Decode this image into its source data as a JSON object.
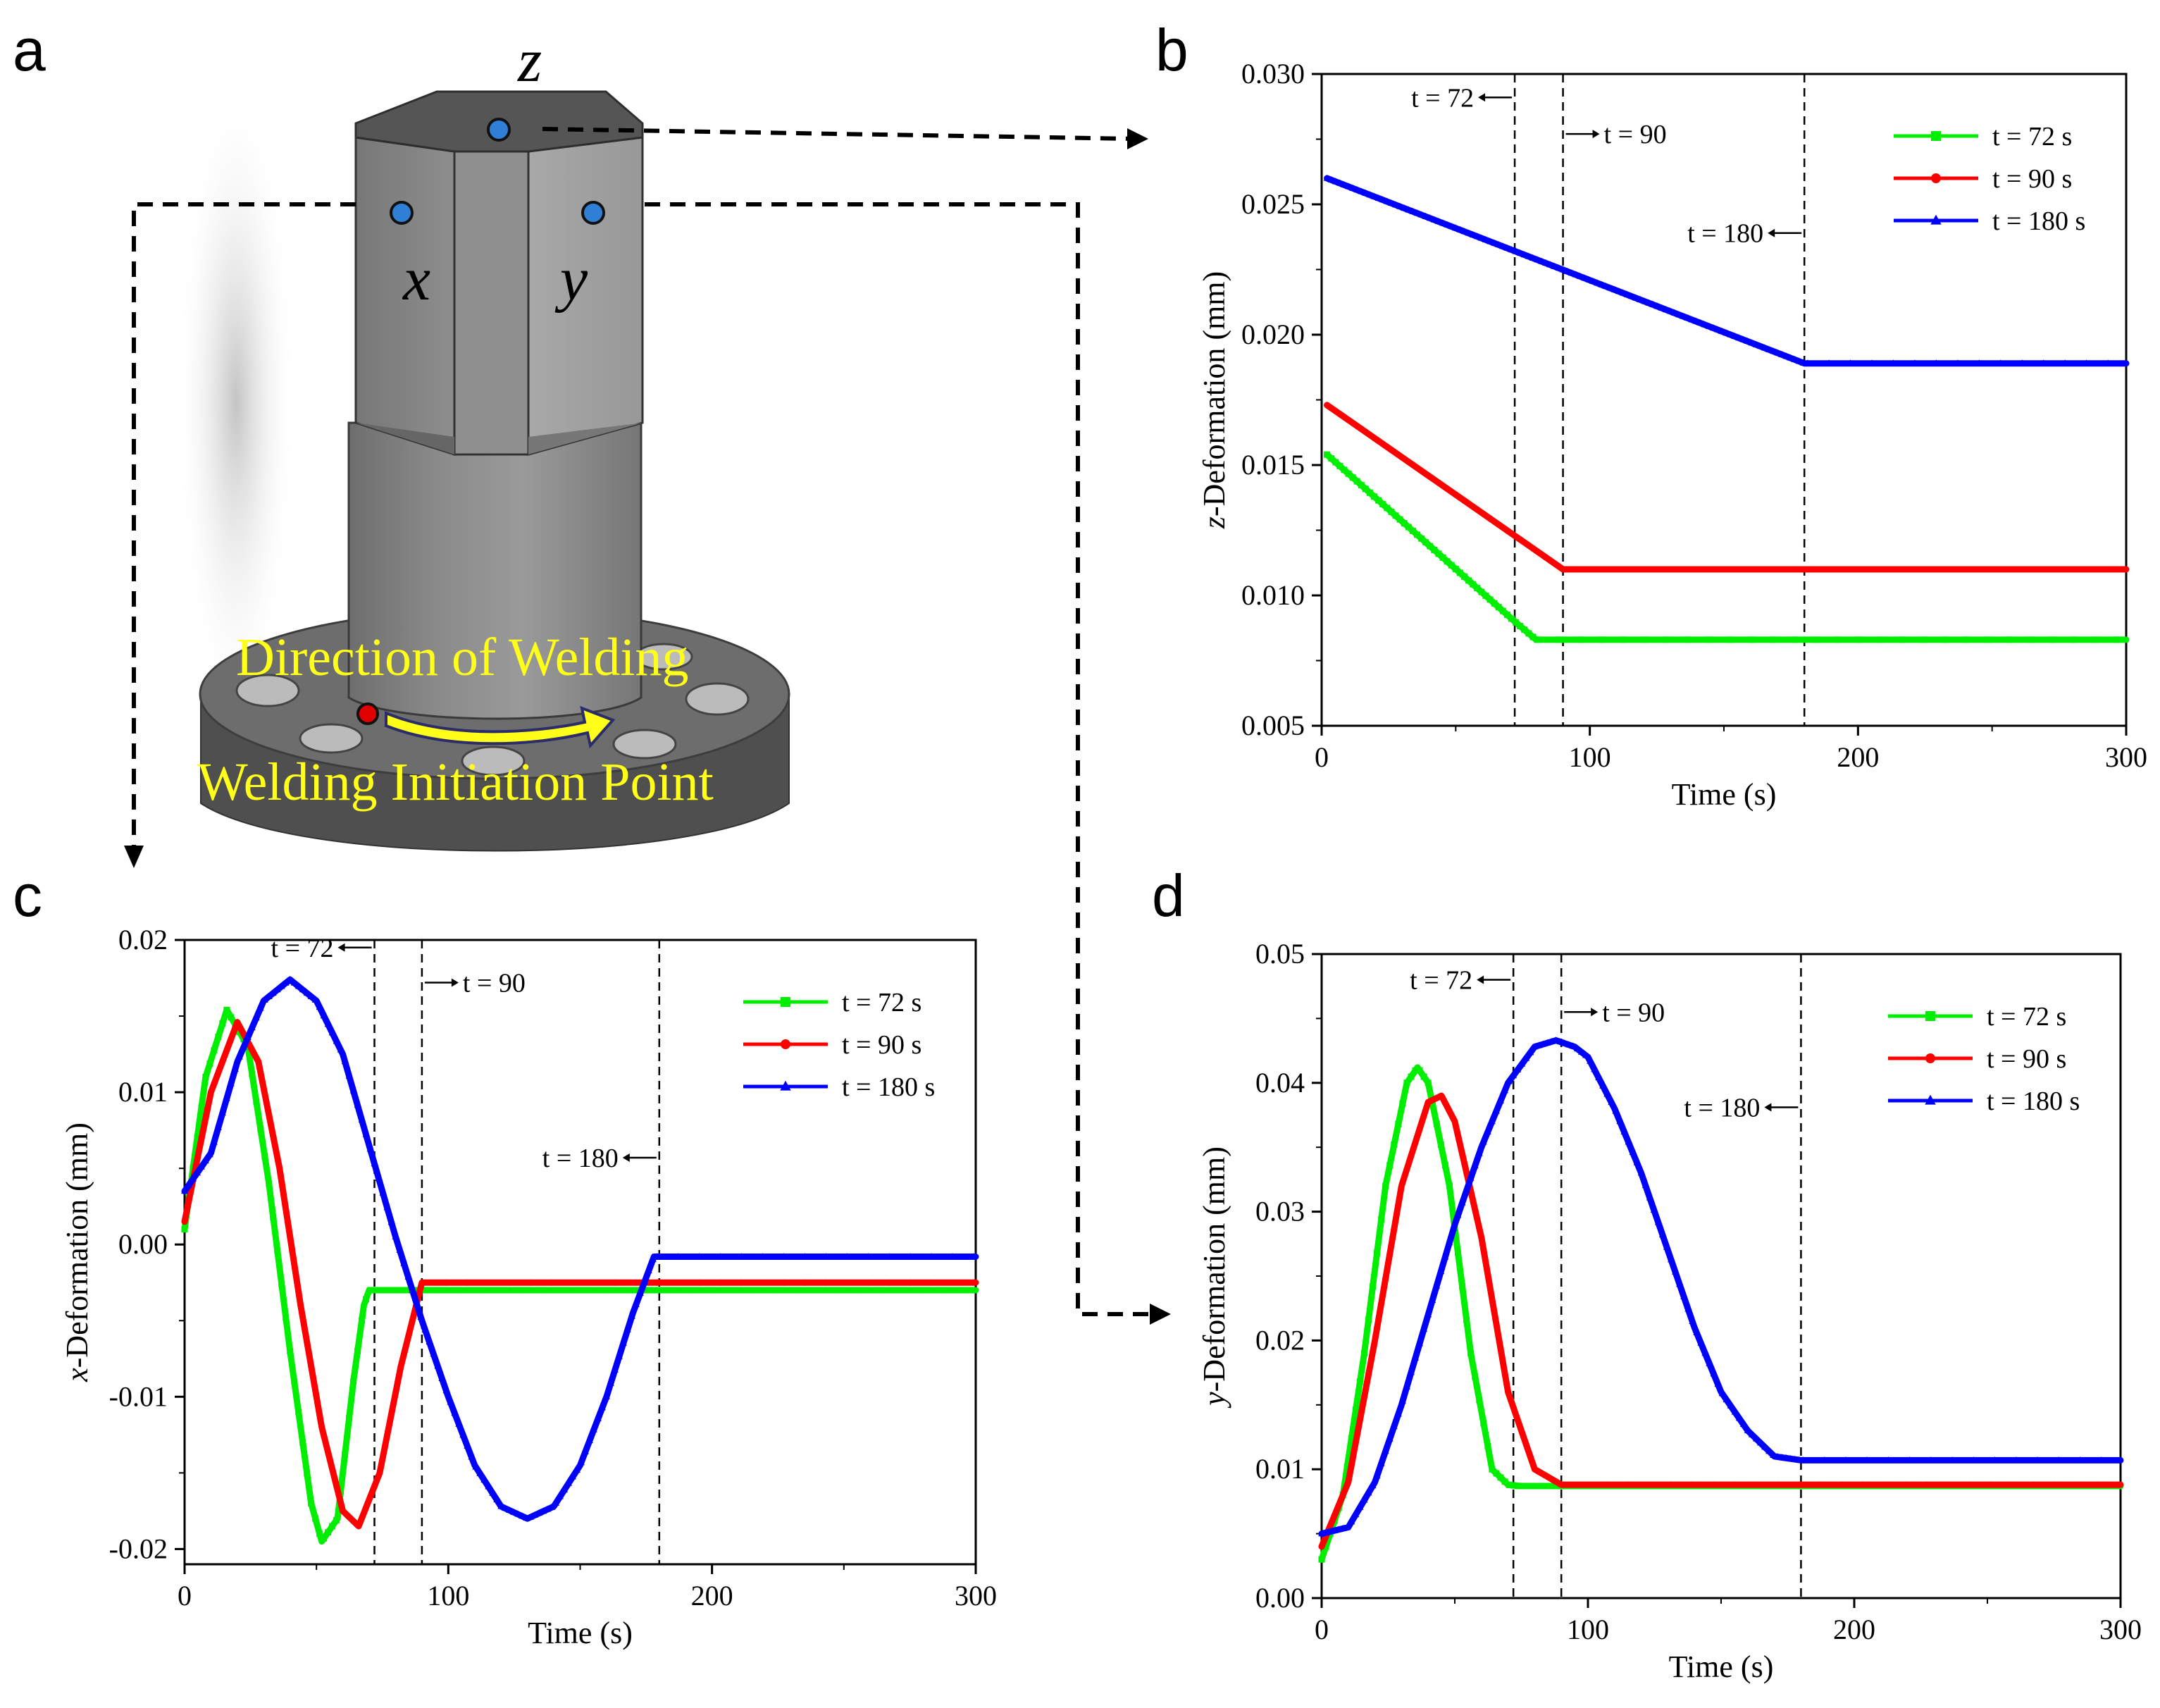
{
  "panels": {
    "a": {
      "letter": "a",
      "axis_letters": {
        "x": "x",
        "y": "y",
        "z": "z"
      },
      "direction_label": "Direction of Welding",
      "initiation_label": "Welding Initiation Point"
    },
    "b": {
      "letter": "b"
    },
    "c": {
      "letter": "c"
    },
    "d": {
      "letter": "d"
    }
  },
  "colors": {
    "t72": "#00ee00",
    "t90": "#ff0000",
    "t180": "#0000ff"
  },
  "chart_data": [
    {
      "id": "b",
      "type": "line",
      "xlabel": "Time (s)",
      "ylabel_var": "z",
      "ylabel_rest": "-Deformation (mm)",
      "xlim": [
        0,
        300
      ],
      "ylim": [
        0.005,
        0.03
      ],
      "xticks": [
        0,
        100,
        200,
        300
      ],
      "xtick_labels": [
        "0",
        "100",
        "200",
        "300"
      ],
      "yticks": [
        0.005,
        0.01,
        0.015,
        0.02,
        0.025,
        0.03
      ],
      "ytick_labels": [
        "0.005",
        "0.010",
        "0.015",
        "0.020",
        "0.025",
        "0.030"
      ],
      "vlines": [
        72,
        90,
        180
      ],
      "annotations": [
        {
          "text": "t = 72",
          "x": 72,
          "y": 0.0291,
          "dir": "left"
        },
        {
          "text": "t = 90",
          "x": 90,
          "y": 0.0277,
          "dir": "right"
        },
        {
          "text": "t = 180",
          "x": 180,
          "y": 0.0239,
          "dir": "left"
        }
      ],
      "legend_position": "top-right",
      "series": [
        {
          "name": "t = 72 s",
          "marker": "square",
          "color": "#00ee00",
          "x": [
            2,
            72,
            80,
            300
          ],
          "y": [
            0.0154,
            0.009,
            0.0083,
            0.0083
          ]
        },
        {
          "name": "t = 90 s",
          "marker": "circle",
          "color": "#ff0000",
          "x": [
            2,
            90,
            300
          ],
          "y": [
            0.0173,
            0.011,
            0.011
          ]
        },
        {
          "name": "t = 180 s",
          "marker": "triangle",
          "color": "#0000ff",
          "x": [
            2,
            180,
            300
          ],
          "y": [
            0.026,
            0.0189,
            0.0189
          ]
        }
      ]
    },
    {
      "id": "c",
      "type": "line",
      "xlabel": "Time (s)",
      "ylabel_var": "x",
      "ylabel_rest": "-Deformation (mm)",
      "xlim": [
        0,
        300
      ],
      "ylim": [
        -0.021,
        0.02
      ],
      "xticks": [
        0,
        100,
        200,
        300
      ],
      "xtick_labels": [
        "0",
        "100",
        "200",
        "300"
      ],
      "yticks": [
        -0.02,
        -0.01,
        0.0,
        0.01,
        0.02
      ],
      "ytick_labels": [
        "-0.02",
        "-0.01",
        "0.00",
        "0.01",
        "0.02"
      ],
      "vlines": [
        72,
        90,
        180
      ],
      "annotations": [
        {
          "text": "t = 72",
          "x": 72,
          "y": 0.0195,
          "dir": "left"
        },
        {
          "text": "t = 90",
          "x": 90,
          "y": 0.0172,
          "dir": "right"
        },
        {
          "text": "t = 180",
          "x": 180,
          "y": 0.0057,
          "dir": "left"
        }
      ],
      "legend_position": "top-right",
      "series": [
        {
          "name": "t = 72 s",
          "marker": "square",
          "color": "#00ee00",
          "x": [
            0,
            8,
            16,
            24,
            32,
            40,
            48,
            52,
            58,
            64,
            68,
            70,
            72,
            300
          ],
          "y": [
            0.001,
            0.011,
            0.0154,
            0.013,
            0.004,
            -0.007,
            -0.017,
            -0.0195,
            -0.018,
            -0.009,
            -0.004,
            -0.003,
            -0.003,
            -0.003
          ]
        },
        {
          "name": "t = 90 s",
          "marker": "circle",
          "color": "#ff0000",
          "x": [
            0,
            10,
            20,
            28,
            36,
            44,
            52,
            60,
            66,
            74,
            82,
            90,
            300
          ],
          "y": [
            0.0015,
            0.01,
            0.0146,
            0.012,
            0.005,
            -0.004,
            -0.012,
            -0.0175,
            -0.0185,
            -0.015,
            -0.008,
            -0.0025,
            -0.0025
          ]
        },
        {
          "name": "t = 180 s",
          "marker": "triangle",
          "color": "#0000ff",
          "x": [
            0,
            10,
            20,
            30,
            40,
            50,
            60,
            70,
            80,
            90,
            100,
            110,
            120,
            130,
            140,
            150,
            160,
            170,
            178,
            300
          ],
          "y": [
            0.0035,
            0.006,
            0.012,
            0.016,
            0.0174,
            0.016,
            0.0125,
            0.0065,
            0.0005,
            -0.005,
            -0.01,
            -0.0145,
            -0.0172,
            -0.018,
            -0.0172,
            -0.0145,
            -0.01,
            -0.0045,
            -0.0008,
            -0.0008
          ]
        }
      ]
    },
    {
      "id": "d",
      "type": "line",
      "xlabel": "Time (s)",
      "ylabel_var": "y",
      "ylabel_rest": "-Deformation (mm)",
      "xlim": [
        0,
        300
      ],
      "ylim": [
        0.0,
        0.05
      ],
      "xticks": [
        0,
        100,
        200,
        300
      ],
      "xtick_labels": [
        "0",
        "100",
        "200",
        "300"
      ],
      "yticks": [
        0.0,
        0.01,
        0.02,
        0.03,
        0.04,
        0.05
      ],
      "ytick_labels": [
        "0.00",
        "0.01",
        "0.02",
        "0.03",
        "0.04",
        "0.05"
      ],
      "vlines": [
        72,
        90,
        180
      ],
      "annotations": [
        {
          "text": "t = 72",
          "x": 72,
          "y": 0.048,
          "dir": "left"
        },
        {
          "text": "t = 90",
          "x": 90,
          "y": 0.0455,
          "dir": "right"
        },
        {
          "text": "t = 180",
          "x": 180,
          "y": 0.0381,
          "dir": "left"
        }
      ],
      "legend_position": "top-right",
      "series": [
        {
          "name": "t = 72 s",
          "marker": "square",
          "color": "#00ee00",
          "x": [
            0,
            8,
            16,
            24,
            32,
            36,
            40,
            48,
            56,
            64,
            70,
            74,
            300
          ],
          "y": [
            0.003,
            0.008,
            0.019,
            0.032,
            0.04,
            0.0412,
            0.04,
            0.032,
            0.019,
            0.01,
            0.0088,
            0.0087,
            0.0087
          ]
        },
        {
          "name": "t = 90 s",
          "marker": "circle",
          "color": "#ff0000",
          "x": [
            0,
            10,
            20,
            30,
            40,
            45,
            50,
            60,
            70,
            80,
            90,
            300
          ],
          "y": [
            0.004,
            0.009,
            0.02,
            0.032,
            0.0385,
            0.039,
            0.037,
            0.028,
            0.016,
            0.01,
            0.0088,
            0.0088
          ]
        },
        {
          "name": "t = 180 s",
          "marker": "triangle",
          "color": "#0000ff",
          "x": [
            0,
            10,
            20,
            30,
            40,
            50,
            60,
            70,
            80,
            88,
            95,
            100,
            110,
            120,
            130,
            140,
            150,
            160,
            170,
            180,
            300
          ],
          "y": [
            0.005,
            0.0055,
            0.009,
            0.015,
            0.022,
            0.029,
            0.035,
            0.04,
            0.0428,
            0.0433,
            0.0428,
            0.042,
            0.038,
            0.033,
            0.027,
            0.021,
            0.016,
            0.013,
            0.011,
            0.0107,
            0.0107
          ]
        }
      ]
    }
  ]
}
